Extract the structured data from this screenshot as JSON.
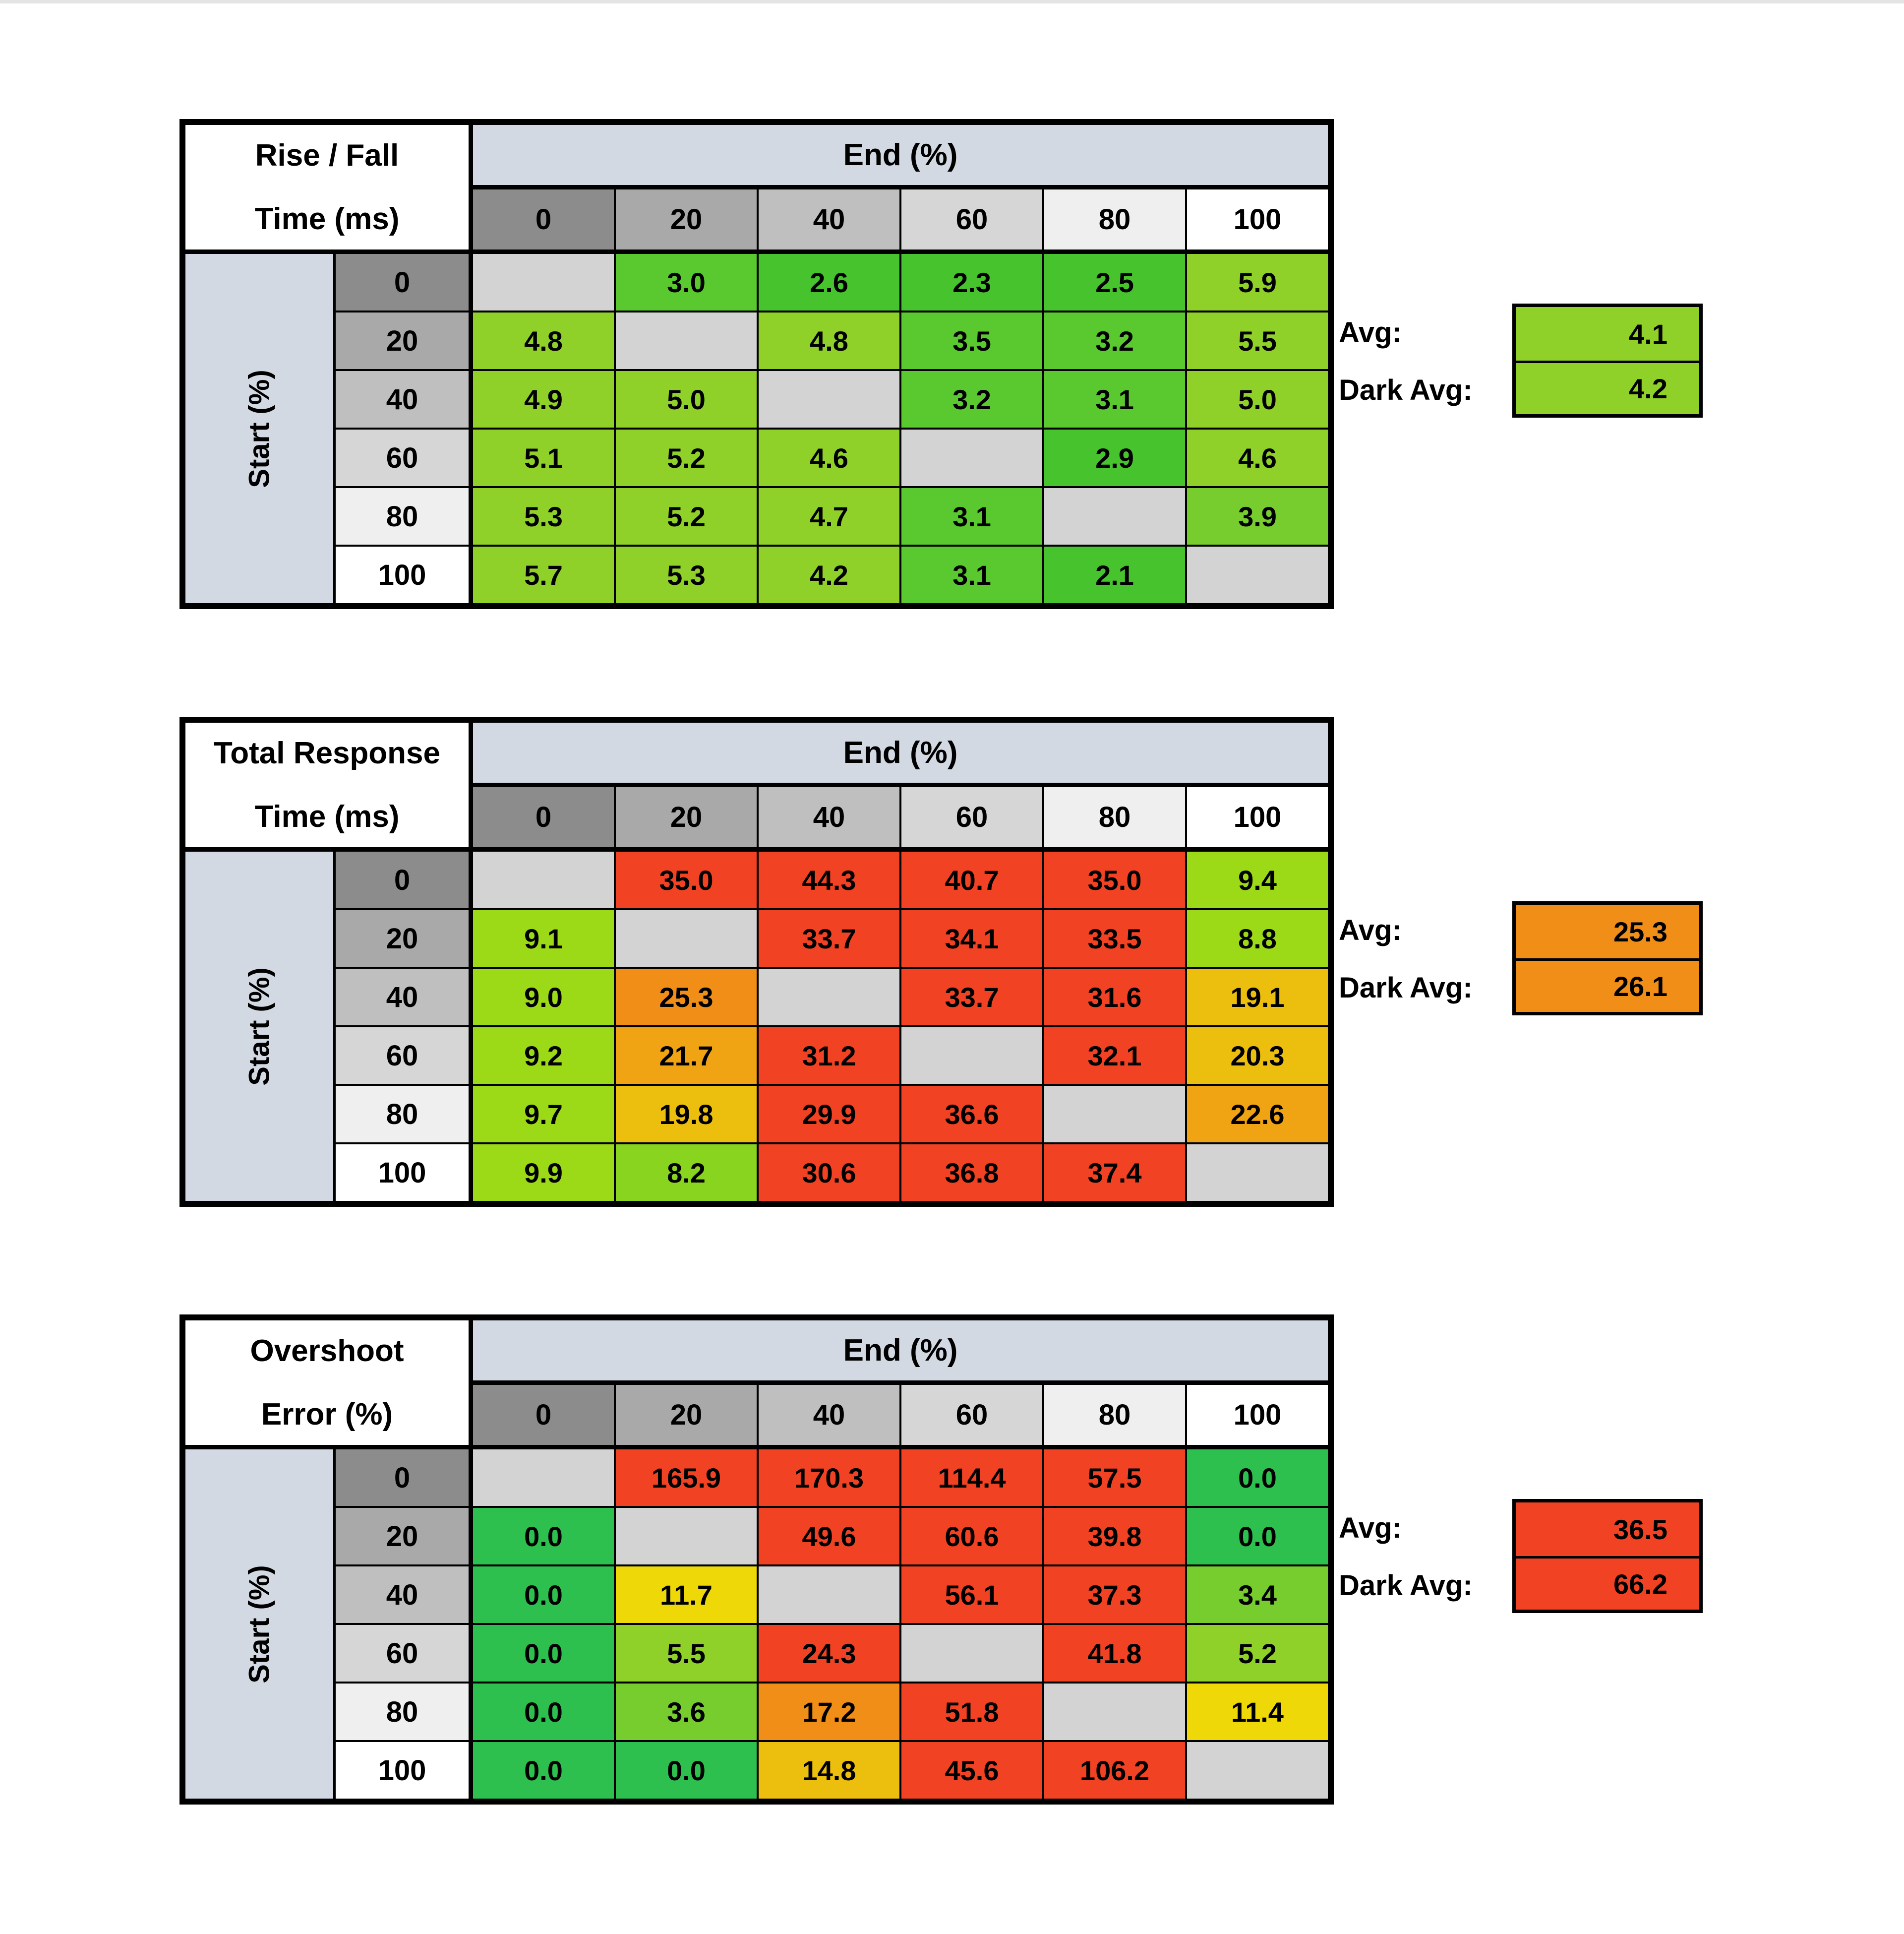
{
  "window": {
    "background": "#FFFFFF",
    "top_strip_color": "#E4E4E4"
  },
  "palette": {
    "border": "#000000",
    "text": "#000000",
    "title_bg": "#FFFFFF",
    "band": "#D2D9E2",
    "diag": "#D3D3D3",
    "hdr0": "#8C8C8C",
    "hdr20": "#A9A9A9",
    "hdr40": "#BFBFBF",
    "hdr60": "#D6D6D6",
    "hdr80": "#EFEFEF",
    "hdr100": "#FFFFFF",
    "G": "#2EC04F",
    "g1": "#47C32E",
    "g2": "#5AC930",
    "g3": "#76CD2D",
    "Y1": "#90D129",
    "Y2": "#9CD916",
    "Y3": "#88D41E",
    "yellow": "#EFD808",
    "gold": "#ECBE0D",
    "amber": "#F0A414",
    "orange": "#F18E18",
    "red": "#F14224"
  },
  "header_gray_keys": [
    "hdr0",
    "hdr20",
    "hdr40",
    "hdr60",
    "hdr80",
    "hdr100"
  ],
  "chart_data": [
    {
      "type": "heatmap",
      "title_lines": [
        "Rise / Fall",
        "Time (ms)"
      ],
      "col_axis_label": "End (%)",
      "row_axis_label": "Start (%)",
      "col_headers": [
        "0",
        "20",
        "40",
        "60",
        "80",
        "100"
      ],
      "row_headers": [
        "0",
        "20",
        "40",
        "60",
        "80",
        "100"
      ],
      "values": [
        [
          "",
          "3.0",
          "2.6",
          "2.3",
          "2.5",
          "5.9"
        ],
        [
          "4.8",
          "",
          "4.8",
          "3.5",
          "3.2",
          "5.5"
        ],
        [
          "4.9",
          "5.0",
          "",
          "3.2",
          "3.1",
          "5.0"
        ],
        [
          "5.1",
          "5.2",
          "4.6",
          "",
          "2.9",
          "4.6"
        ],
        [
          "5.3",
          "5.2",
          "4.7",
          "3.1",
          "",
          "3.9"
        ],
        [
          "5.7",
          "5.3",
          "4.2",
          "3.1",
          "2.1",
          ""
        ]
      ],
      "cell_colors": [
        [
          "diag",
          "g2",
          "g1",
          "g1",
          "g1",
          "Y1"
        ],
        [
          "Y1",
          "diag",
          "Y1",
          "g2",
          "g2",
          "Y1"
        ],
        [
          "Y1",
          "Y1",
          "diag",
          "g2",
          "g2",
          "Y1"
        ],
        [
          "Y1",
          "Y1",
          "Y1",
          "diag",
          "g1",
          "Y1"
        ],
        [
          "Y1",
          "Y1",
          "Y1",
          "g2",
          "diag",
          "g3"
        ],
        [
          "Y1",
          "Y1",
          "Y1",
          "g2",
          "g1",
          "diag"
        ]
      ],
      "avg_label": "Avg:",
      "dark_avg_label": "Dark Avg:",
      "avg_value": "4.1",
      "avg_color": "Y1",
      "dark_avg_value": "4.2",
      "dark_avg_color": "Y1"
    },
    {
      "type": "heatmap",
      "title_lines": [
        "Total Response",
        "Time (ms)"
      ],
      "col_axis_label": "End (%)",
      "row_axis_label": "Start (%)",
      "col_headers": [
        "0",
        "20",
        "40",
        "60",
        "80",
        "100"
      ],
      "row_headers": [
        "0",
        "20",
        "40",
        "60",
        "80",
        "100"
      ],
      "values": [
        [
          "",
          "35.0",
          "44.3",
          "40.7",
          "35.0",
          "9.4"
        ],
        [
          "9.1",
          "",
          "33.7",
          "34.1",
          "33.5",
          "8.8"
        ],
        [
          "9.0",
          "25.3",
          "",
          "33.7",
          "31.6",
          "19.1"
        ],
        [
          "9.2",
          "21.7",
          "31.2",
          "",
          "32.1",
          "20.3"
        ],
        [
          "9.7",
          "19.8",
          "29.9",
          "36.6",
          "",
          "22.6"
        ],
        [
          "9.9",
          "8.2",
          "30.6",
          "36.8",
          "37.4",
          ""
        ]
      ],
      "cell_colors": [
        [
          "diag",
          "red",
          "red",
          "red",
          "red",
          "Y2"
        ],
        [
          "Y2",
          "diag",
          "red",
          "red",
          "red",
          "Y2"
        ],
        [
          "Y2",
          "orange",
          "diag",
          "red",
          "red",
          "gold"
        ],
        [
          "Y2",
          "amber",
          "red",
          "diag",
          "red",
          "gold"
        ],
        [
          "Y2",
          "gold",
          "red",
          "red",
          "diag",
          "amber"
        ],
        [
          "Y2",
          "Y3",
          "red",
          "red",
          "red",
          "diag"
        ]
      ],
      "avg_label": "Avg:",
      "dark_avg_label": "Dark Avg:",
      "avg_value": "25.3",
      "avg_color": "orange",
      "dark_avg_value": "26.1",
      "dark_avg_color": "orange"
    },
    {
      "type": "heatmap",
      "title_lines": [
        "Overshoot",
        "Error (%)"
      ],
      "col_axis_label": "End (%)",
      "row_axis_label": "Start (%)",
      "col_headers": [
        "0",
        "20",
        "40",
        "60",
        "80",
        "100"
      ],
      "row_headers": [
        "0",
        "20",
        "40",
        "60",
        "80",
        "100"
      ],
      "values": [
        [
          "",
          "165.9",
          "170.3",
          "114.4",
          "57.5",
          "0.0"
        ],
        [
          "0.0",
          "",
          "49.6",
          "60.6",
          "39.8",
          "0.0"
        ],
        [
          "0.0",
          "11.7",
          "",
          "56.1",
          "37.3",
          "3.4"
        ],
        [
          "0.0",
          "5.5",
          "24.3",
          "",
          "41.8",
          "5.2"
        ],
        [
          "0.0",
          "3.6",
          "17.2",
          "51.8",
          "",
          "11.4"
        ],
        [
          "0.0",
          "0.0",
          "14.8",
          "45.6",
          "106.2",
          ""
        ]
      ],
      "cell_colors": [
        [
          "diag",
          "red",
          "red",
          "red",
          "red",
          "G"
        ],
        [
          "G",
          "diag",
          "red",
          "red",
          "red",
          "G"
        ],
        [
          "G",
          "yellow",
          "diag",
          "red",
          "red",
          "g3"
        ],
        [
          "G",
          "Y1",
          "red",
          "diag",
          "red",
          "Y1"
        ],
        [
          "G",
          "g3",
          "orange",
          "red",
          "diag",
          "yellow"
        ],
        [
          "G",
          "G",
          "gold",
          "red",
          "red",
          "diag"
        ]
      ],
      "avg_label": "Avg:",
      "dark_avg_label": "Dark Avg:",
      "avg_value": "36.5",
      "avg_color": "red",
      "dark_avg_value": "66.2",
      "dark_avg_color": "red"
    }
  ],
  "layout_tops": [
    240,
    1445,
    2650
  ]
}
